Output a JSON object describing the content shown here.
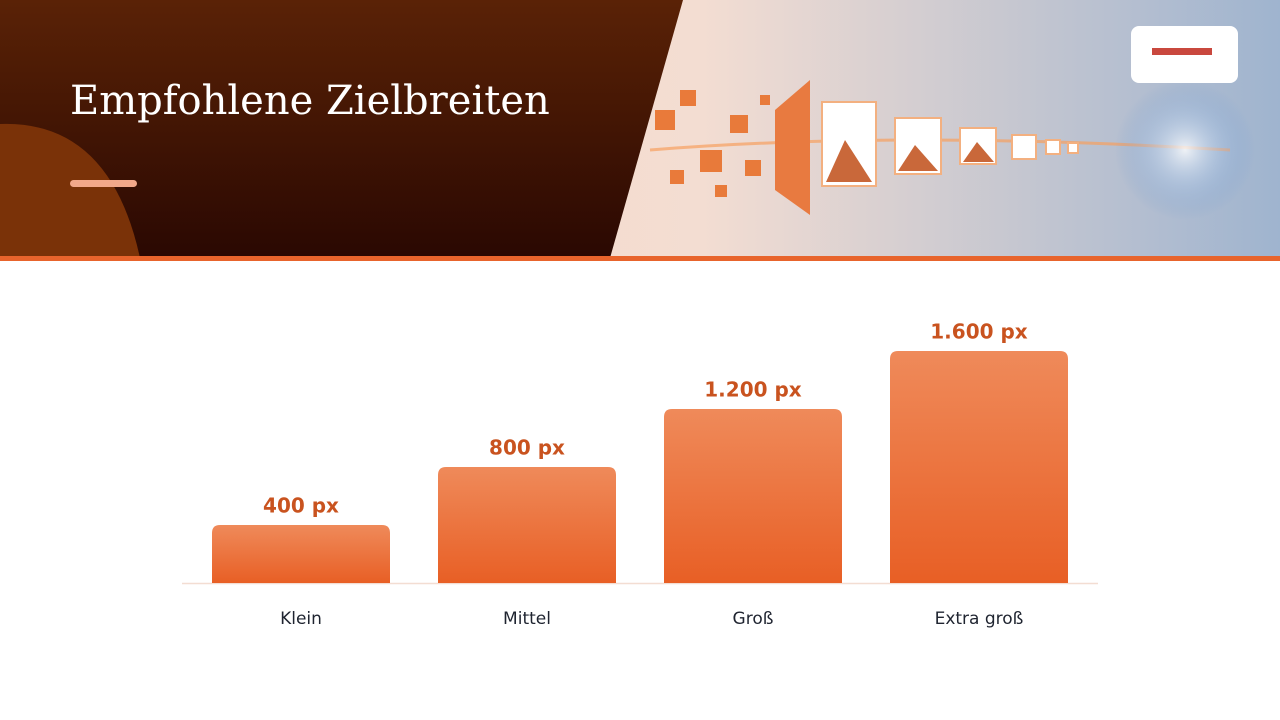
{
  "chart_data": {
    "type": "bar",
    "title": "Empfohlene Zielbreiten",
    "categories": [
      "Klein",
      "Mittel",
      "Groß",
      "Extra groß"
    ],
    "values": [
      400,
      800,
      1200,
      1600
    ],
    "value_labels": [
      "400 px",
      "800 px",
      "1.200 px",
      "1.600 px"
    ],
    "color": "#ea6a32"
  }
}
